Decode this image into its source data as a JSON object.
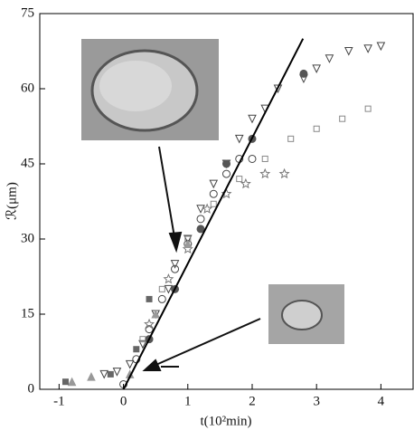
{
  "chart_data": {
    "type": "scatter",
    "x_label": "t(10²min)",
    "y_label": "ℛ(μm)",
    "xlim": [
      -1.3,
      4.5
    ],
    "ylim": [
      0,
      75
    ],
    "xticks": [
      -1,
      0,
      1,
      2,
      3,
      4
    ],
    "yticks": [
      0,
      15,
      30,
      45,
      60,
      75
    ],
    "series": [
      {
        "marker": "triangle-down",
        "color": "#444",
        "filled": false,
        "x": [
          -0.3,
          -0.1,
          0.1,
          0.3,
          0.5,
          0.7,
          0.8,
          1.0,
          1.2,
          1.4,
          1.6,
          1.8,
          2.0,
          2.2,
          2.4,
          2.8,
          3.0,
          3.2,
          3.5,
          3.8,
          4.0
        ],
        "values": [
          3,
          3.5,
          5,
          9,
          15,
          20,
          25,
          30,
          36,
          41,
          45,
          50,
          54,
          56,
          60,
          62,
          64,
          66,
          67.5,
          68,
          68.5
        ]
      },
      {
        "marker": "circle",
        "color": "#444",
        "filled": false,
        "x": [
          0,
          0.2,
          0.4,
          0.6,
          0.8,
          1.0,
          1.2,
          1.4,
          1.6,
          1.8,
          2.0
        ],
        "values": [
          1,
          6,
          12,
          18,
          24,
          29,
          34,
          39,
          43,
          46,
          46
        ]
      },
      {
        "marker": "square",
        "color": "#888",
        "filled": false,
        "x": [
          0.3,
          0.6,
          1.0,
          1.4,
          1.8,
          2.2,
          2.6,
          3.0,
          3.4,
          3.8
        ],
        "values": [
          10,
          20,
          30,
          37,
          42,
          46,
          50,
          52,
          54,
          56
        ]
      },
      {
        "marker": "star",
        "color": "#777",
        "filled": false,
        "x": [
          0.4,
          0.7,
          1.0,
          1.3,
          1.6,
          1.9,
          2.2,
          2.5
        ],
        "values": [
          13,
          22,
          28,
          36,
          39,
          41,
          43,
          43
        ]
      },
      {
        "marker": "circle",
        "color": "#555",
        "filled": true,
        "x": [
          0.4,
          0.8,
          1.2,
          1.6,
          2.0,
          2.8
        ],
        "values": [
          10,
          20,
          32,
          45,
          50,
          63
        ]
      },
      {
        "marker": "triangle-up",
        "color": "#999",
        "filled": true,
        "x": [
          -0.8,
          -0.5,
          0.1,
          0.5,
          1.0
        ],
        "values": [
          1.5,
          2.5,
          3,
          15,
          29
        ]
      },
      {
        "marker": "square",
        "color": "#666",
        "filled": true,
        "x": [
          -0.9,
          -0.2,
          0.2,
          0.4
        ],
        "values": [
          1.5,
          3,
          8,
          18
        ]
      }
    ],
    "fit_line": {
      "x": [
        0,
        2.79
      ],
      "values": [
        0,
        70
      ]
    }
  }
}
